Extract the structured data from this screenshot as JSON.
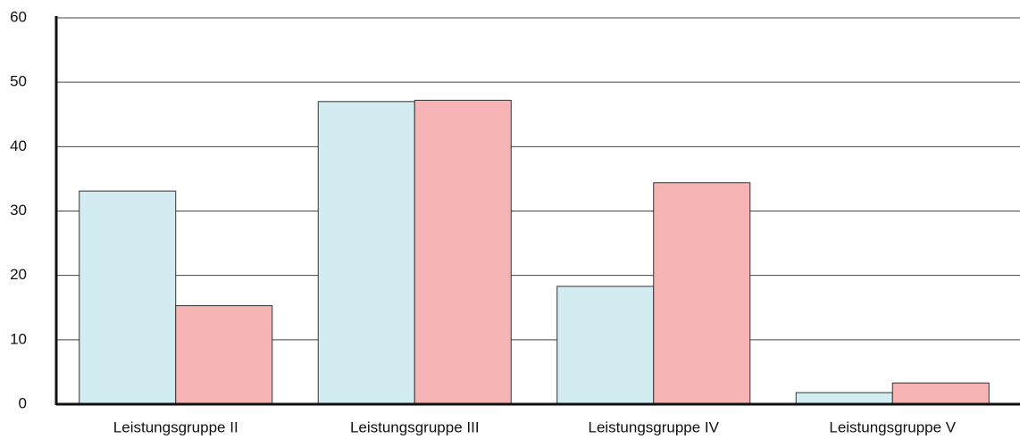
{
  "chart_data": {
    "type": "bar",
    "categories": [
      "Leistungsgruppe II",
      "Leistungsgruppe III",
      "Leistungsgruppe IV",
      "Leistungsgruppe V"
    ],
    "series": [
      {
        "color": "#d2ecf2",
        "values": [
          33.1,
          47,
          18.3,
          1.8
        ]
      },
      {
        "color": "#f7b4b4",
        "values": [
          15.3,
          47.2,
          34.4,
          3.3
        ]
      }
    ],
    "ylim": [
      0,
      60
    ],
    "yticks": [
      0,
      10,
      20,
      30,
      40,
      50,
      60
    ],
    "grid": true
  }
}
